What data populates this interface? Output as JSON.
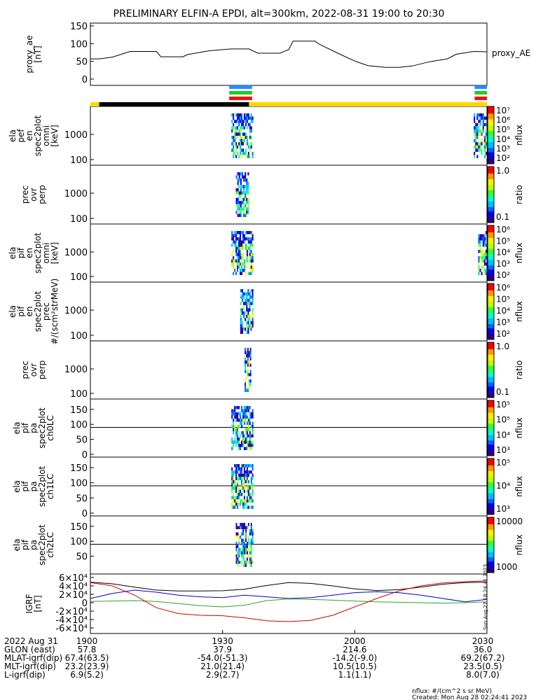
{
  "title": "PRELIMINARY ELFIN-A EPDI, alt=300km, 2022-08-31 19:00 to 20:30",
  "colors": {
    "bar_blue": "#1e90ff",
    "bar_green": "#22cc22",
    "bar_red": "#ee1111",
    "status_black": "#000000",
    "status_yellow": "#ffd700",
    "grf_black": "#000000",
    "grf_blue": "#0000cc",
    "grf_green": "#22aa22",
    "grf_red": "#cc0000"
  },
  "panels": [
    {
      "ylabel": [
        "proxy_ae",
        "[nT]"
      ],
      "right_label": "proxy_AE",
      "cbar": null
    },
    {
      "ylabel": [
        "ela",
        "pef",
        "en",
        "spec2plot",
        "omni",
        "[keV]"
      ],
      "cbar": {
        "title": "nflux",
        "ticks": [
          "10⁷",
          "10⁶",
          "10⁵",
          "10⁴",
          "10³",
          "10²"
        ],
        "type": "log"
      }
    },
    {
      "ylabel": [
        "prec",
        "ovr",
        "perp"
      ],
      "cbar": {
        "title": "ratio",
        "ticks": [
          "1.0",
          "0.1"
        ],
        "type": "ratio"
      }
    },
    {
      "ylabel": [
        "ela",
        "pif",
        "en",
        "spec2plot",
        "omni",
        "[keV]"
      ],
      "cbar": {
        "title": "nflux",
        "ticks": [
          "10⁶",
          "10⁵",
          "10⁴",
          "10³",
          "10²"
        ],
        "type": "log"
      }
    },
    {
      "ylabel": [
        "ela",
        "pif",
        "en",
        "spec2plot",
        "prec",
        "#/(scm²strMeV)"
      ],
      "cbar": {
        "title": "nflux",
        "ticks": [
          "10⁶",
          "10⁵",
          "10⁴",
          "10³",
          "10²"
        ],
        "type": "log"
      }
    },
    {
      "ylabel": [
        "prec",
        "ovr",
        "perp"
      ],
      "cbar": {
        "title": "ratio",
        "ticks": [
          "1.0",
          "0.1"
        ],
        "type": "ratio"
      }
    },
    {
      "ylabel": [
        "ela",
        "pif",
        "pa",
        "spec2plot",
        "ch0LC"
      ],
      "cbar": {
        "title": "nflux",
        "ticks": [
          "10⁵",
          "10⁵",
          "10⁴",
          "10³"
        ],
        "type": "log"
      }
    },
    {
      "ylabel": [
        "ela",
        "pif",
        "pa",
        "spec2plot",
        "ch1LC"
      ],
      "cbar": {
        "title": "nflux",
        "ticks": [
          "10⁵",
          "10⁴",
          "10³"
        ],
        "type": "log"
      }
    },
    {
      "ylabel": [
        "ela",
        "pif",
        "pa",
        "spec2plot",
        "ch2LC"
      ],
      "cbar": {
        "title": "nflux",
        "ticks": [
          "10000",
          "1000"
        ],
        "type": "log"
      }
    },
    {
      "ylabel": [
        "IGRF",
        "[nT]"
      ],
      "cbar": null
    }
  ],
  "side_stamp": "Sun Aug 27 18:24:41 2023",
  "footer": {
    "rows": [
      {
        "label": "2022 Aug 31",
        "values": [
          "1900",
          "1930",
          "2000",
          "2030"
        ]
      },
      {
        "label": "GLON (east)",
        "values": [
          "57.8",
          "37.9",
          "214.6",
          "36.0"
        ]
      },
      {
        "label": "MLAT-igrf(dip)",
        "values": [
          "67.4(63.5)",
          "-54.0(-51.3)",
          "-14.2(-9.0)",
          "69.2(67.2)"
        ]
      },
      {
        "label": "MLT-igrf(dip)",
        "values": [
          "23.2(23.9)",
          "21.0(21.4)",
          "10.5(10.5)",
          "23.5(0.5)"
        ]
      },
      {
        "label": "L-igrf(dip)",
        "values": [
          "6.9(5.2)",
          "2.9(2.7)",
          "1.1(1.1)",
          "8.0(7.0)"
        ]
      }
    ],
    "units_note": "nflux: #/(cm^2 s sr MeV)",
    "created": "Created: Mon Aug 28 02:24:41 2023"
  },
  "chart_data": [
    {
      "type": "line",
      "panel": "proxy_ae",
      "title": "PRELIMINARY ELFIN-A EPDI, alt=300km, 2022-08-31 19:00 to 20:30",
      "xlabel": "",
      "ylabel": "proxy_ae [nT]",
      "xlim_minutes": [
        0,
        90
      ],
      "ylim": [
        0,
        150
      ],
      "yticks": [
        0,
        50,
        100,
        150
      ],
      "series": [
        {
          "name": "proxy_AE",
          "x": [
            0,
            2,
            5,
            9,
            15,
            16,
            21,
            22,
            27,
            32,
            36,
            38,
            43,
            45,
            46,
            51,
            52,
            57,
            60,
            63,
            67,
            70,
            73,
            77,
            81,
            83,
            87,
            90
          ],
          "y": [
            57,
            57,
            62,
            78,
            78,
            63,
            63,
            69,
            80,
            85,
            85,
            73,
            73,
            83,
            107,
            107,
            98,
            68,
            51,
            38,
            33,
            33,
            37,
            49,
            57,
            70,
            78,
            77
          ]
        }
      ]
    },
    {
      "type": "heatmap",
      "panel": "ela pef en spec2plot omni",
      "ylabel": "[keV]",
      "yscale": "log",
      "yticks": [
        100,
        1000
      ],
      "zlabel": "nflux",
      "zscale": "log",
      "zlim": [
        100,
        10000000
      ],
      "active_intervals_minutes": [
        [
          32,
          37
        ],
        [
          87,
          90
        ]
      ]
    },
    {
      "type": "heatmap",
      "panel": "prec ovr perp (electrons)",
      "yscale": "log",
      "yticks": [
        100,
        1000
      ],
      "zlabel": "ratio",
      "zlim": [
        0.01,
        1.0
      ],
      "active_intervals_minutes": [
        [
          33,
          36
        ]
      ]
    },
    {
      "type": "heatmap",
      "panel": "ela pif en spec2plot omni",
      "ylabel": "[keV]",
      "yscale": "log",
      "yticks": [
        100,
        1000
      ],
      "zlabel": "nflux",
      "zscale": "log",
      "zlim": [
        100,
        1000000
      ],
      "active_intervals_minutes": [
        [
          32,
          37
        ],
        [
          88,
          90
        ]
      ]
    },
    {
      "type": "heatmap",
      "panel": "ela pif en spec2plot prec",
      "ylabel": "#/(scm²strMeV)",
      "yscale": "log",
      "yticks": [
        100,
        1000
      ],
      "zlabel": "nflux",
      "zscale": "log",
      "zlim": [
        100,
        1000000
      ],
      "active_intervals_minutes": [
        [
          34,
          37
        ]
      ]
    },
    {
      "type": "heatmap",
      "panel": "prec ovr perp (ions)",
      "yscale": "log",
      "yticks": [
        100,
        1000
      ],
      "zlabel": "ratio",
      "zlim": [
        0.01,
        1.0
      ],
      "active_intervals_minutes": [
        [
          35,
          36.5
        ]
      ]
    },
    {
      "type": "heatmap",
      "panel": "ela pif pa spec2plot ch0LC",
      "ylim": [
        0,
        180
      ],
      "yticks": [
        0,
        50,
        100,
        150
      ],
      "zlabel": "nflux",
      "zscale": "log",
      "zlim": [
        1000,
        100000
      ],
      "active_intervals_minutes": [
        [
          32,
          37
        ]
      ]
    },
    {
      "type": "heatmap",
      "panel": "ela pif pa spec2plot ch1LC",
      "ylim": [
        0,
        180
      ],
      "yticks": [
        0,
        50,
        100,
        150
      ],
      "zlabel": "nflux",
      "zscale": "log",
      "zlim": [
        1000,
        100000
      ],
      "active_intervals_minutes": [
        [
          32,
          37
        ]
      ]
    },
    {
      "type": "heatmap",
      "panel": "ela pif pa spec2plot ch2LC",
      "ylim": [
        0,
        180
      ],
      "yticks": [
        50,
        100,
        150
      ],
      "zlabel": "nflux",
      "zscale": "log",
      "zlim": [
        500,
        20000
      ],
      "active_intervals_minutes": [
        [
          33,
          37
        ]
      ]
    },
    {
      "type": "line",
      "panel": "IGRF",
      "ylabel": "IGRF [nT]",
      "xlim_minutes": [
        0,
        90
      ],
      "ylim": [
        -60000,
        60000
      ],
      "yticks": [
        -60000,
        -40000,
        -20000,
        0,
        20000,
        40000,
        60000
      ],
      "ytick_labels": [
        "-6×10⁴",
        "-4×10⁴",
        "-2×10⁴",
        "0",
        "2×10⁴",
        "4×10⁴",
        "6×10⁴"
      ],
      "series": [
        {
          "color": "black",
          "x": [
            0,
            5,
            10,
            15,
            20,
            25,
            30,
            35,
            40,
            45,
            50,
            55,
            60,
            65,
            70,
            75,
            80,
            85,
            90
          ],
          "y": [
            49000,
            45000,
            37000,
            30000,
            28000,
            28000,
            28500,
            32000,
            41000,
            48000,
            46000,
            40000,
            33000,
            29000,
            31000,
            37000,
            44000,
            48000,
            49000
          ]
        },
        {
          "color": "blue",
          "x": [
            0,
            5,
            10,
            15,
            20,
            25,
            30,
            35,
            40,
            45,
            50,
            55,
            60,
            65,
            70,
            75,
            80,
            85,
            90
          ],
          "y": [
            10000,
            22000,
            30000,
            25000,
            18000,
            14000,
            12000,
            18000,
            14000,
            10000,
            12000,
            18000,
            24000,
            26000,
            24000,
            18000,
            10000,
            2000,
            8000
          ]
        },
        {
          "color": "green",
          "x": [
            0,
            5,
            10,
            15,
            20,
            25,
            30,
            35,
            40,
            45,
            50,
            55,
            60,
            65,
            70,
            75,
            80,
            85,
            90
          ],
          "y": [
            3000,
            4000,
            5000,
            3000,
            -2000,
            -7000,
            -10000,
            -6000,
            5000,
            9000,
            8000,
            6000,
            4000,
            2000,
            1000,
            0,
            -1000,
            0,
            2000
          ]
        },
        {
          "color": "red",
          "x": [
            0,
            5,
            10,
            15,
            20,
            25,
            30,
            35,
            40,
            45,
            50,
            55,
            60,
            65,
            70,
            75,
            80,
            85,
            90
          ],
          "y": [
            48000,
            40000,
            18000,
            -12000,
            -26000,
            -30000,
            -31000,
            -36000,
            -43000,
            -45000,
            -42000,
            -30000,
            -10000,
            10000,
            28000,
            40000,
            47000,
            50000,
            52000
          ]
        }
      ]
    }
  ]
}
